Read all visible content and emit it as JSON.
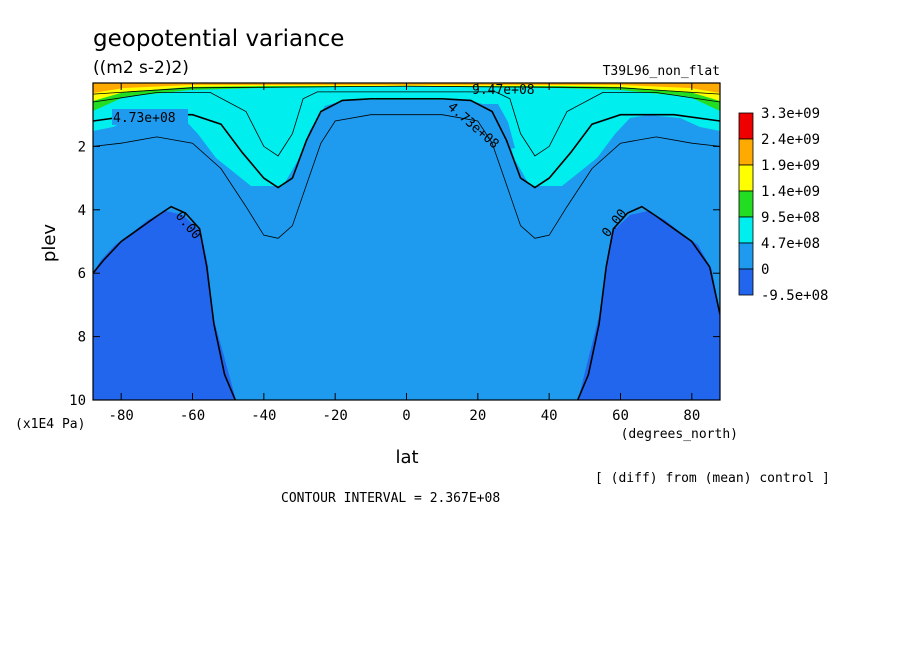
{
  "figure": {
    "title": "geopotential variance",
    "units": "((m2 s-2)2)",
    "run_label": "T39L96_non_flat",
    "diff_note": "[ (diff) from (mean) control ]",
    "contour_interval": "CONTOUR INTERVAL = 2.367E+08"
  },
  "colors": {
    "fill_below_0": "#2266ee",
    "fill_0_4.7e8": "#1e9bee",
    "fill_4.7e8_9.5e8": "#00eeee",
    "fill_9.5e8_1.4e9": "#22dd22",
    "fill_1.4e9_1.9e9": "#ffff00",
    "fill_1.9e9_2.4e9": "#ffaa00",
    "fill_above_2.4e9": "#ee0000"
  },
  "chart_data": {
    "type": "contour",
    "variable": "geopotential variance",
    "xlabel": "lat",
    "xunit_label": "(degrees_north)",
    "ylabel": "plev",
    "yunit_label": "(x1E4 Pa)",
    "xlim": [
      -87.9,
      87.9
    ],
    "ylim": [
      0,
      10
    ],
    "y_inverted": true,
    "xticks": [
      -80,
      -60,
      -40,
      -20,
      0,
      20,
      40,
      60,
      80
    ],
    "xtick_labels": [
      "-80",
      "-60",
      "-40",
      "-20",
      "0",
      "20",
      "40",
      "60",
      "80"
    ],
    "yticks": [
      2,
      4,
      6,
      8,
      10
    ],
    "ytick_labels": [
      "2",
      "4",
      "6",
      "8",
      "10"
    ],
    "contour_interval": 236700000,
    "colorbar": {
      "labels": [
        "3.3e+09",
        "2.4e+09",
        "1.9e+09",
        "1.4e+09",
        "9.5e+08",
        "4.7e+08",
        "0",
        "-9.5e+08"
      ],
      "colors": [
        "#ee0000",
        "#ffaa00",
        "#ffff00",
        "#22dd22",
        "#00eeee",
        "#1e9bee",
        "#2266ee"
      ]
    },
    "contour_labels": [
      "9.47e+08",
      "4.73e+08",
      "4.73e+08",
      "0.00",
      "0.00"
    ],
    "contours": [
      {
        "level": 0,
        "label": "0.00",
        "points": [
          [
            -87.9,
            6.0
          ],
          [
            -85,
            5.6
          ],
          [
            -80,
            5.0
          ],
          [
            -75,
            4.6
          ],
          [
            -70,
            4.2
          ],
          [
            -66,
            3.9
          ],
          [
            -62,
            4.1
          ],
          [
            -58,
            4.6
          ],
          [
            -56,
            5.8
          ],
          [
            -54,
            7.6
          ],
          [
            -51,
            9.2
          ],
          [
            -48,
            10
          ]
        ]
      },
      {
        "level": 0,
        "label": "0.00",
        "points": [
          [
            48,
            10
          ],
          [
            51,
            9.2
          ],
          [
            54,
            7.6
          ],
          [
            56,
            5.8
          ],
          [
            58,
            4.6
          ],
          [
            62,
            4.1
          ],
          [
            66,
            3.9
          ],
          [
            70,
            4.2
          ],
          [
            75,
            4.6
          ],
          [
            80,
            5.0
          ],
          [
            85,
            5.8
          ],
          [
            87.9,
            7.3
          ]
        ]
      },
      {
        "level": 236700000,
        "points": [
          [
            -87.9,
            2.0
          ],
          [
            -80,
            1.9
          ],
          [
            -70,
            1.7
          ],
          [
            -60,
            1.9
          ],
          [
            -52,
            2.7
          ],
          [
            -45,
            3.9
          ],
          [
            -40,
            4.8
          ],
          [
            -36,
            4.9
          ],
          [
            -32,
            4.5
          ],
          [
            -28,
            3.2
          ],
          [
            -24,
            1.9
          ],
          [
            -20,
            1.2
          ],
          [
            -10,
            1.0
          ],
          [
            0,
            1.0
          ],
          [
            10,
            1.0
          ],
          [
            20,
            1.2
          ],
          [
            24,
            1.9
          ],
          [
            28,
            3.2
          ],
          [
            32,
            4.5
          ],
          [
            36,
            4.9
          ],
          [
            40,
            4.8
          ],
          [
            45,
            3.9
          ],
          [
            52,
            2.7
          ],
          [
            60,
            1.9
          ],
          [
            70,
            1.7
          ],
          [
            80,
            1.9
          ],
          [
            87.9,
            2.0
          ]
        ]
      },
      {
        "level": 473000000,
        "label": "4.73e+08",
        "points": [
          [
            -87.9,
            1.2
          ],
          [
            -75,
            1.0
          ],
          [
            -60,
            1.0
          ],
          [
            -52,
            1.3
          ],
          [
            -46,
            2.2
          ],
          [
            -40,
            3.0
          ],
          [
            -36,
            3.3
          ],
          [
            -32,
            3.0
          ],
          [
            -28,
            1.8
          ],
          [
            -24,
            0.9
          ],
          [
            -18,
            0.55
          ],
          [
            -10,
            0.5
          ],
          [
            0,
            0.5
          ],
          [
            10,
            0.5
          ],
          [
            18,
            0.55
          ],
          [
            24,
            0.9
          ],
          [
            28,
            1.8
          ],
          [
            32,
            3.0
          ],
          [
            36,
            3.3
          ],
          [
            40,
            3.0
          ],
          [
            46,
            2.2
          ],
          [
            52,
            1.3
          ],
          [
            60,
            1.0
          ],
          [
            75,
            1.0
          ],
          [
            87.9,
            1.2
          ]
        ]
      },
      {
        "level": 710000000,
        "points": [
          [
            -87.9,
            0.6
          ],
          [
            -70,
            0.3
          ],
          [
            -55,
            0.3
          ],
          [
            -45,
            0.9
          ],
          [
            -40,
            2.0
          ],
          [
            -36,
            2.3
          ],
          [
            -32,
            1.6
          ],
          [
            -29,
            0.5
          ],
          [
            -25,
            0.28
          ],
          [
            0,
            0.28
          ],
          [
            25,
            0.28
          ],
          [
            29,
            0.5
          ],
          [
            32,
            1.6
          ],
          [
            36,
            2.3
          ],
          [
            40,
            2.0
          ],
          [
            45,
            0.9
          ],
          [
            55,
            0.3
          ],
          [
            70,
            0.3
          ],
          [
            87.9,
            0.6
          ]
        ]
      },
      {
        "level": 947000000,
        "label": "9.47e+08",
        "points": [
          [
            -87.9,
            0.35
          ],
          [
            -60,
            0.15
          ],
          [
            0,
            0.1
          ],
          [
            60,
            0.15
          ],
          [
            87.9,
            0.35
          ]
        ]
      }
    ]
  }
}
